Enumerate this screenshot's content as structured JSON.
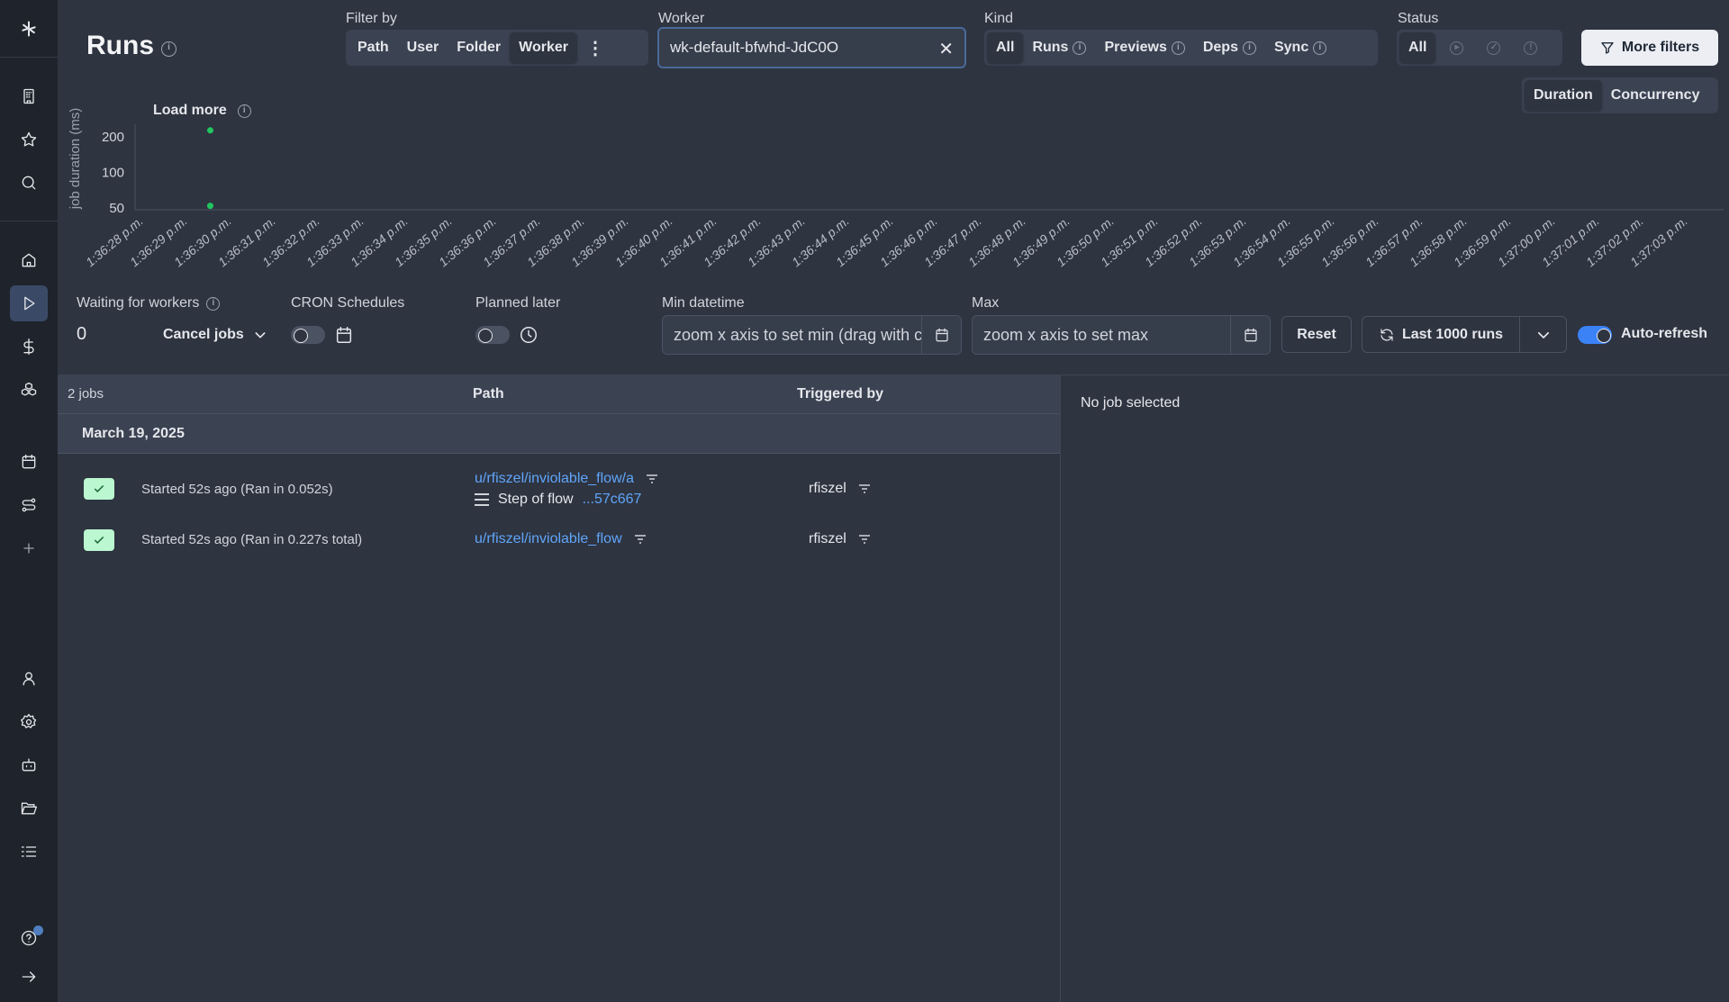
{
  "sidebar": {
    "items": [
      "logo",
      "apps",
      "favorites",
      "search",
      "home",
      "runs",
      "billing",
      "resources",
      "schedules",
      "flows",
      "add",
      "user",
      "settings",
      "bot",
      "folders",
      "list",
      "help",
      "expand"
    ],
    "active": "runs",
    "notification_color": "#4f7fbf"
  },
  "header": {
    "title": "Runs"
  },
  "filter_by": {
    "label": "Filter by",
    "options": [
      "Path",
      "User",
      "Folder",
      "Worker"
    ],
    "selected": "Worker"
  },
  "worker": {
    "label": "Worker",
    "value": "wk-default-bfwhd-JdC0O"
  },
  "kind": {
    "label": "Kind",
    "options": [
      "All",
      "Runs",
      "Previews",
      "Deps",
      "Sync"
    ],
    "selected": "All"
  },
  "status": {
    "label": "Status",
    "options": [
      "All"
    ],
    "icons": [
      "play-circle-icon",
      "check-circle-icon",
      "alert-circle-icon"
    ],
    "selected": "All"
  },
  "more_filters": "More filters",
  "chart_tabs": {
    "options": [
      "Duration",
      "Concurrency"
    ],
    "selected": "Duration"
  },
  "load_more": "Load more",
  "chart_data": {
    "type": "scatter",
    "ylabel": "job duration (ms)",
    "yscale": "log",
    "yticks": [
      200,
      100,
      50
    ],
    "xticks": [
      "1:36:28 p.m.",
      "1:36:29 p.m.",
      "1:36:30 p.m.",
      "1:36:31 p.m.",
      "1:36:32 p.m.",
      "1:36:33 p.m.",
      "1:36:34 p.m.",
      "1:36:35 p.m.",
      "1:36:36 p.m.",
      "1:36:37 p.m.",
      "1:36:38 p.m.",
      "1:36:39 p.m.",
      "1:36:40 p.m.",
      "1:36:41 p.m.",
      "1:36:42 p.m.",
      "1:36:43 p.m.",
      "1:36:44 p.m.",
      "1:36:45 p.m.",
      "1:36:46 p.m.",
      "1:36:47 p.m.",
      "1:36:48 p.m.",
      "1:36:49 p.m.",
      "1:36:50 p.m.",
      "1:36:51 p.m.",
      "1:36:52 p.m.",
      "1:36:53 p.m.",
      "1:36:54 p.m.",
      "1:36:55 p.m.",
      "1:36:56 p.m.",
      "1:36:57 p.m.",
      "1:36:58 p.m.",
      "1:36:59 p.m.",
      "1:37:00 p.m.",
      "1:37:01 p.m.",
      "1:37:02 p.m.",
      "1:37:03 p.m."
    ],
    "points": [
      {
        "x": "13:36:29.5",
        "y": 227
      },
      {
        "x": "13:36:29.5",
        "y": 52
      }
    ],
    "point_color": "#22c55e",
    "grid": false
  },
  "controls": {
    "waiting_label": "Waiting for workers",
    "waiting_value": "0",
    "cancel_jobs": "Cancel jobs",
    "cron_label": "CRON Schedules",
    "cron_on": false,
    "planned_label": "Planned later",
    "planned_on": false,
    "min_label": "Min datetime",
    "min_placeholder": "zoom x axis to set min (drag with ctrl)",
    "max_label": "Max",
    "max_placeholder": "zoom x axis to set max",
    "reset": "Reset",
    "last_runs": "Last 1000 runs",
    "auto_refresh": "Auto-refresh",
    "auto_refresh_on": true
  },
  "table": {
    "count": "2 jobs",
    "col_path": "Path",
    "col_triggered": "Triggered by",
    "date": "March 19, 2025",
    "rows": [
      {
        "status": "success",
        "started": "Started 52s ago (Ran in 0.052s)",
        "path": "u/rfiszel/inviolable_flow/a",
        "step_label": "Step of flow",
        "step_link": "...57c667",
        "triggered_by": "rfiszel"
      },
      {
        "status": "success",
        "started": "Started 52s ago (Ran in 0.227s total)",
        "path": "u/rfiszel/inviolable_flow",
        "triggered_by": "rfiszel"
      }
    ]
  },
  "detail": {
    "empty": "No job selected"
  }
}
